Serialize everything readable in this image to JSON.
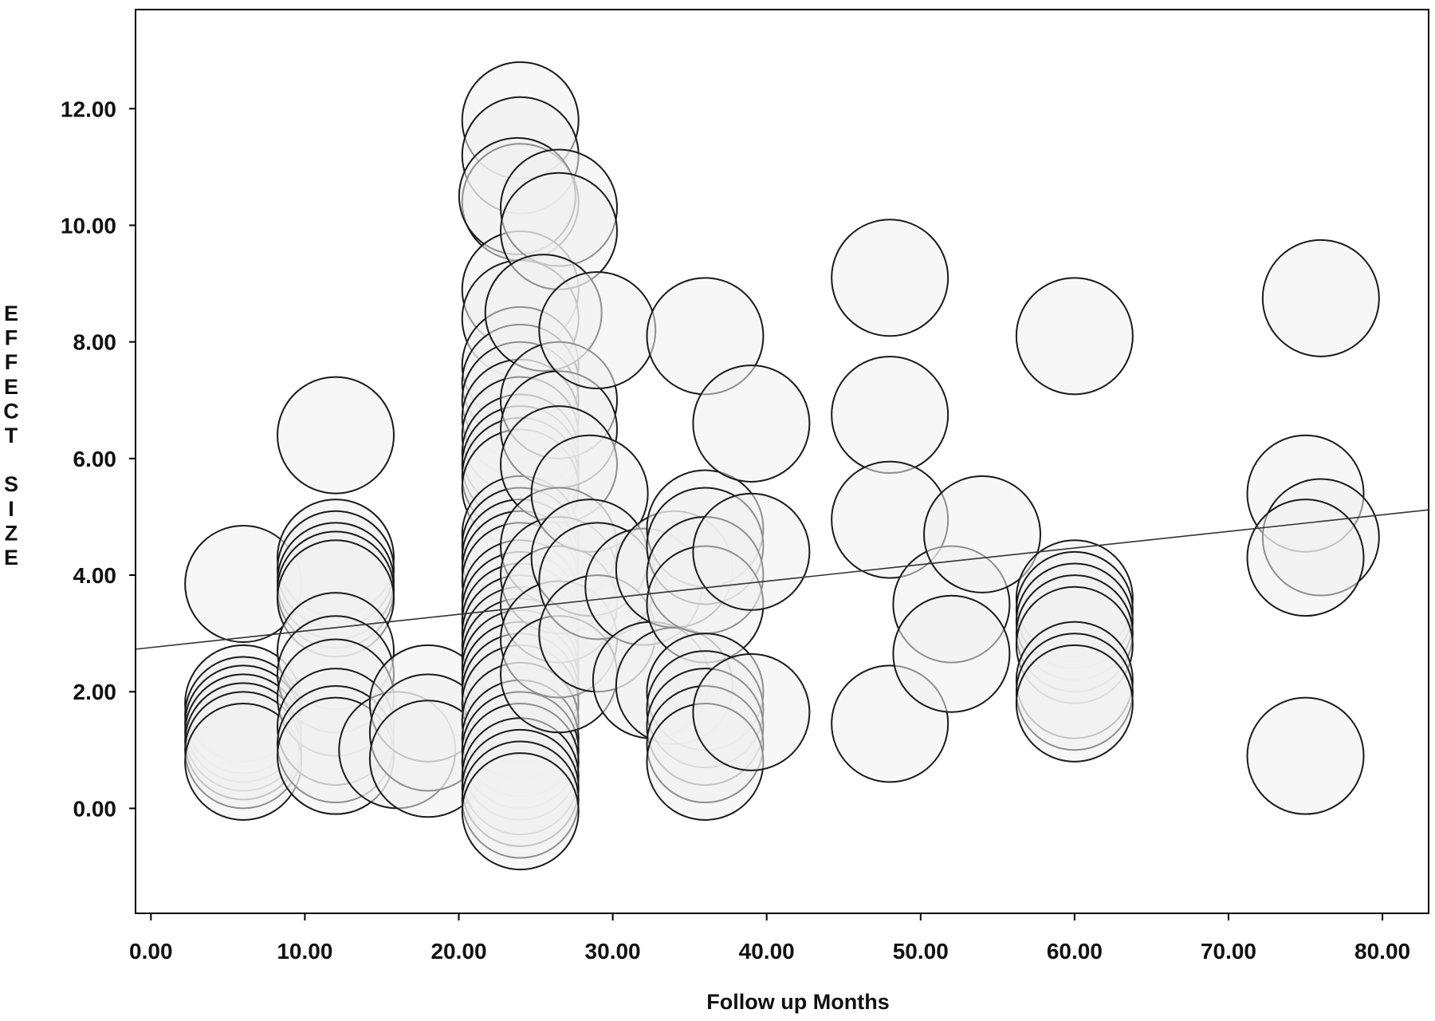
{
  "chart_data": {
    "type": "scatter",
    "title": "",
    "xlabel": "Follow up Months",
    "ylabel": "EFFECT SIZE",
    "xlim": [
      -1,
      83
    ],
    "ylim": [
      -1.8,
      13.7
    ],
    "x_ticks": [
      0,
      10,
      20,
      30,
      40,
      50,
      60,
      70,
      80
    ],
    "x_tick_labels": [
      "0.00",
      "10.00",
      "20.00",
      "30.00",
      "40.00",
      "50.00",
      "60.00",
      "70.00",
      "80.00"
    ],
    "y_ticks": [
      0,
      2,
      4,
      6,
      8,
      10,
      12
    ],
    "y_tick_labels": [
      "0.00",
      "2.00",
      "4.00",
      "6.00",
      "8.00",
      "10.00",
      "12.00"
    ],
    "grid": false,
    "legend": "none",
    "colors": {
      "bubble_fill": "#f1f1f1",
      "bubble_stroke": "#1a1a1a",
      "axis": "#000000",
      "line": "#333333"
    },
    "regression_line": {
      "x": [
        -1,
        83
      ],
      "y": [
        2.73,
        5.12
      ]
    },
    "points": [
      {
        "x": 6,
        "y": 3.85
      },
      {
        "x": 6,
        "y": 1.8
      },
      {
        "x": 6,
        "y": 1.6
      },
      {
        "x": 6,
        "y": 1.45
      },
      {
        "x": 6,
        "y": 1.3
      },
      {
        "x": 6,
        "y": 1.15
      },
      {
        "x": 6,
        "y": 1.0
      },
      {
        "x": 6,
        "y": 0.8
      },
      {
        "x": 12,
        "y": 6.4
      },
      {
        "x": 12,
        "y": 4.3
      },
      {
        "x": 12,
        "y": 4.1
      },
      {
        "x": 12,
        "y": 3.9
      },
      {
        "x": 12,
        "y": 3.75
      },
      {
        "x": 12,
        "y": 3.6
      },
      {
        "x": 12,
        "y": 2.7
      },
      {
        "x": 12,
        "y": 2.3
      },
      {
        "x": 12,
        "y": 1.9
      },
      {
        "x": 12,
        "y": 1.4
      },
      {
        "x": 12,
        "y": 1.1
      },
      {
        "x": 12,
        "y": 0.9
      },
      {
        "x": 16,
        "y": 1.0
      },
      {
        "x": 18,
        "y": 1.8
      },
      {
        "x": 18,
        "y": 1.3
      },
      {
        "x": 18,
        "y": 0.85
      },
      {
        "x": 24,
        "y": 11.8
      },
      {
        "x": 24,
        "y": 11.2
      },
      {
        "x": 24,
        "y": 10.4
      },
      {
        "x": 23.8,
        "y": 10.5
      },
      {
        "x": 24,
        "y": 8.9
      },
      {
        "x": 24,
        "y": 8.4
      },
      {
        "x": 24,
        "y": 7.6
      },
      {
        "x": 24,
        "y": 7.3
      },
      {
        "x": 24,
        "y": 7.0
      },
      {
        "x": 24,
        "y": 6.7
      },
      {
        "x": 24,
        "y": 6.4
      },
      {
        "x": 24,
        "y": 6.1
      },
      {
        "x": 24,
        "y": 5.9
      },
      {
        "x": 24,
        "y": 5.7
      },
      {
        "x": 24,
        "y": 5.5
      },
      {
        "x": 24,
        "y": 4.7
      },
      {
        "x": 24,
        "y": 4.5
      },
      {
        "x": 24,
        "y": 4.3
      },
      {
        "x": 24,
        "y": 4.1
      },
      {
        "x": 24,
        "y": 3.9
      },
      {
        "x": 24,
        "y": 3.6
      },
      {
        "x": 24,
        "y": 3.4
      },
      {
        "x": 24,
        "y": 3.2
      },
      {
        "x": 24,
        "y": 3.0
      },
      {
        "x": 24,
        "y": 2.8
      },
      {
        "x": 24,
        "y": 2.6
      },
      {
        "x": 24,
        "y": 2.4
      },
      {
        "x": 24,
        "y": 2.2
      },
      {
        "x": 24,
        "y": 2.0
      },
      {
        "x": 24,
        "y": 1.8
      },
      {
        "x": 24,
        "y": 1.5
      },
      {
        "x": 24,
        "y": 1.2
      },
      {
        "x": 24,
        "y": 1.0
      },
      {
        "x": 24,
        "y": 0.8
      },
      {
        "x": 24,
        "y": 0.55
      },
      {
        "x": 24,
        "y": 0.35
      },
      {
        "x": 24,
        "y": 0.15
      },
      {
        "x": 24,
        "y": -0.05
      },
      {
        "x": 26.5,
        "y": 10.3
      },
      {
        "x": 26.5,
        "y": 9.9
      },
      {
        "x": 25.5,
        "y": 8.5
      },
      {
        "x": 26.5,
        "y": 7.0
      },
      {
        "x": 26.5,
        "y": 6.5
      },
      {
        "x": 26.5,
        "y": 5.9
      },
      {
        "x": 26.5,
        "y": 4.5
      },
      {
        "x": 26.5,
        "y": 4.0
      },
      {
        "x": 26.5,
        "y": 3.5
      },
      {
        "x": 26.5,
        "y": 2.9
      },
      {
        "x": 26.5,
        "y": 2.3
      },
      {
        "x": 29,
        "y": 8.2
      },
      {
        "x": 28.5,
        "y": 5.4
      },
      {
        "x": 28.5,
        "y": 4.3
      },
      {
        "x": 29,
        "y": 3.9
      },
      {
        "x": 29,
        "y": 3.0
      },
      {
        "x": 32,
        "y": 3.8
      },
      {
        "x": 32.5,
        "y": 2.2
      },
      {
        "x": 34,
        "y": 2.1
      },
      {
        "x": 34,
        "y": 4.1
      },
      {
        "x": 36,
        "y": 8.1
      },
      {
        "x": 36,
        "y": 4.8
      },
      {
        "x": 36,
        "y": 4.5
      },
      {
        "x": 36,
        "y": 4.0
      },
      {
        "x": 36,
        "y": 3.5
      },
      {
        "x": 36,
        "y": 2.0
      },
      {
        "x": 36,
        "y": 1.7
      },
      {
        "x": 36,
        "y": 1.4
      },
      {
        "x": 36,
        "y": 1.1
      },
      {
        "x": 36,
        "y": 0.8
      },
      {
        "x": 39,
        "y": 6.6
      },
      {
        "x": 39,
        "y": 4.4
      },
      {
        "x": 39,
        "y": 1.65
      },
      {
        "x": 48,
        "y": 9.1
      },
      {
        "x": 48,
        "y": 6.75
      },
      {
        "x": 48,
        "y": 4.95
      },
      {
        "x": 48,
        "y": 1.45
      },
      {
        "x": 52,
        "y": 3.5
      },
      {
        "x": 52,
        "y": 2.65
      },
      {
        "x": 54,
        "y": 4.7
      },
      {
        "x": 60,
        "y": 8.1
      },
      {
        "x": 60,
        "y": 3.6
      },
      {
        "x": 60,
        "y": 3.4
      },
      {
        "x": 60,
        "y": 3.2
      },
      {
        "x": 60,
        "y": 3.0
      },
      {
        "x": 60,
        "y": 2.8
      },
      {
        "x": 60,
        "y": 2.2
      },
      {
        "x": 60,
        "y": 2.0
      },
      {
        "x": 60,
        "y": 1.8
      },
      {
        "x": 76,
        "y": 8.75
      },
      {
        "x": 75,
        "y": 5.4
      },
      {
        "x": 76,
        "y": 4.65
      },
      {
        "x": 75,
        "y": 4.3
      },
      {
        "x": 75,
        "y": 0.9
      }
    ]
  }
}
